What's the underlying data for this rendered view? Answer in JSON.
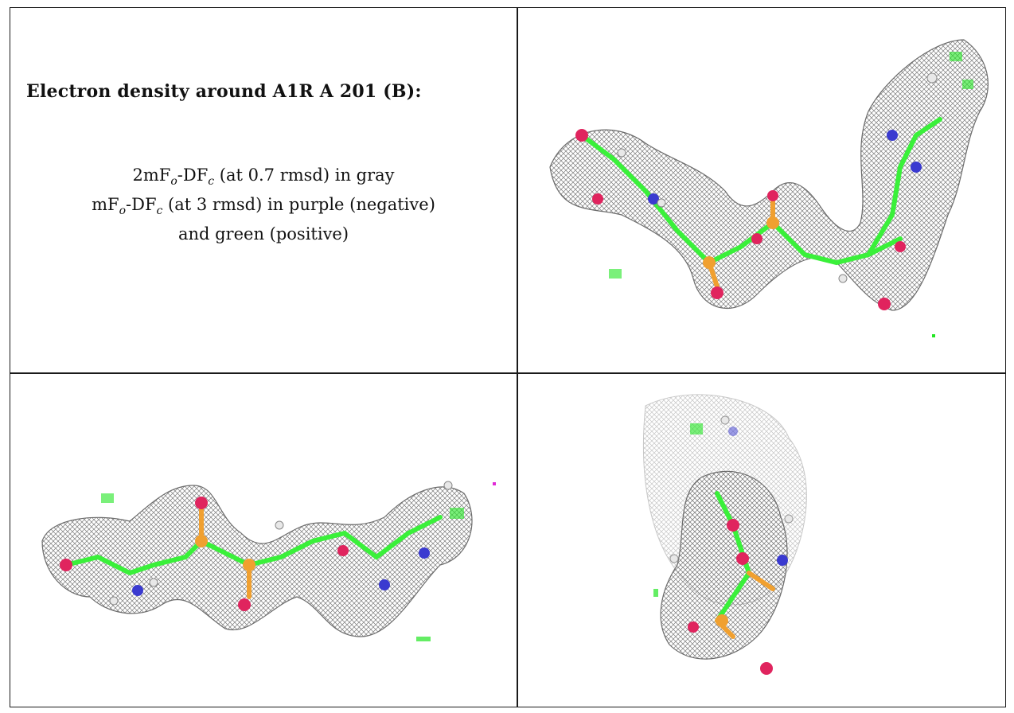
{
  "title": "Electron density around A1R A 201 (B):",
  "legend": {
    "line1_prefix": "2mF",
    "line1_sub_o": "o",
    "line1_mid": "-DF",
    "line1_sub_c": "c",
    "line1_suffix": " (at 0.7 rmsd) in gray",
    "line2_prefix": "mF",
    "line2_sub_o": "o",
    "line2_mid": "-DF",
    "line2_sub_c": "c",
    "line2_suffix": " (at 3 rmsd) in purple (negative)",
    "line3": "and green (positive)"
  },
  "colors": {
    "mesh_gray": "#8a8a8a",
    "positive_green": "#22e622",
    "negative_purple": "#e02ad6",
    "oxygen": "#e0245e",
    "phosphorus": "#f0a030",
    "nitrogen": "#3a3ad0",
    "carbon": "#3af03a",
    "hydrogen": "#e8e8e8"
  },
  "panels": [
    {
      "id": "top-right",
      "view": "view-1"
    },
    {
      "id": "bottom-left",
      "view": "view-2"
    },
    {
      "id": "bottom-right",
      "view": "view-3"
    }
  ]
}
